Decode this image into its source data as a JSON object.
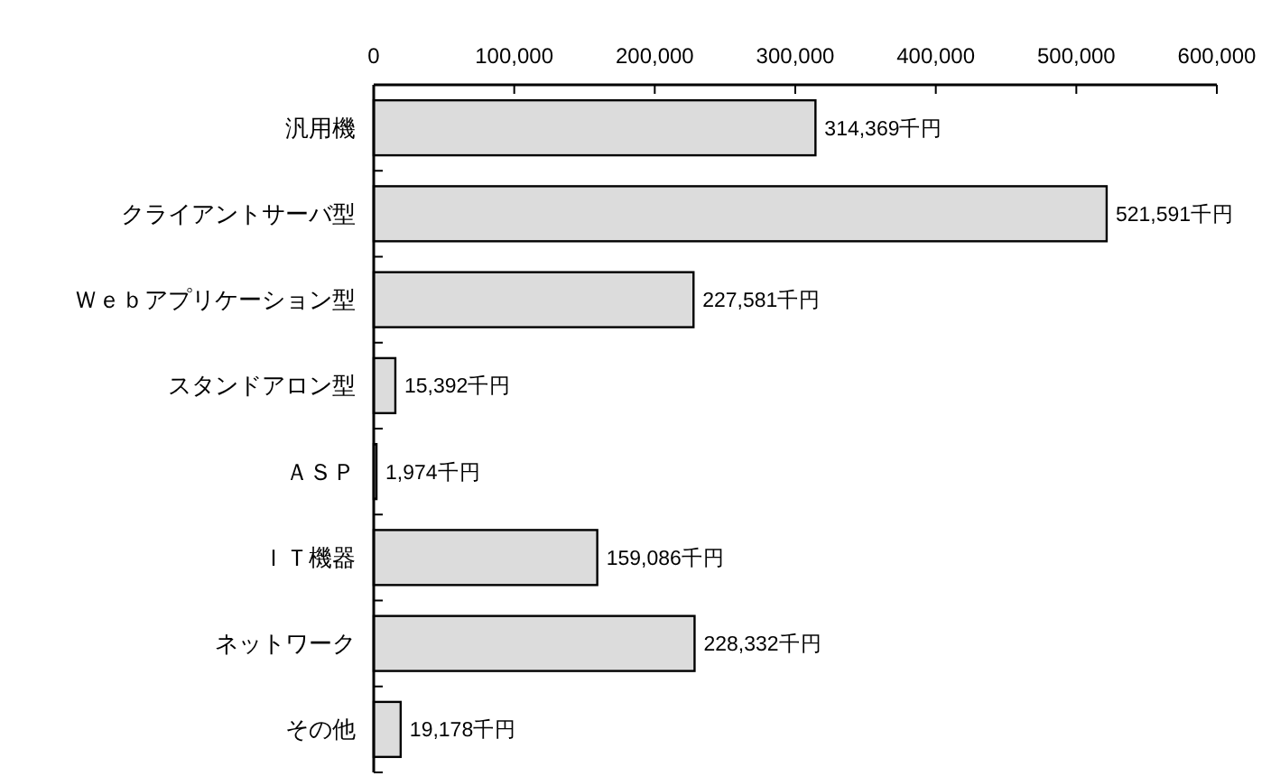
{
  "chart_data": {
    "type": "bar",
    "orientation": "horizontal",
    "categories": [
      "汎用機",
      "クライアントサーバ型",
      "Ｗｅｂアプリケーション型",
      "スタンドアロン型",
      "ＡＳＰ",
      "ＩＴ機器",
      "ネットワーク",
      "その他"
    ],
    "values": [
      314369,
      521591,
      227581,
      15392,
      1974,
      159086,
      228332,
      19178
    ],
    "value_labels": [
      "314,369千円",
      "521,591千円",
      "227,581千円",
      "15,392千円",
      "1,974千円",
      "159,086千円",
      "228,332千円",
      "19,178千円"
    ],
    "color": "#dcdcdc",
    "xlim": [
      0,
      600000
    ],
    "xticks": [
      {
        "value": 0,
        "label": "0"
      },
      {
        "value": 100000,
        "label": "100,000"
      },
      {
        "value": 200000,
        "label": "200,000"
      },
      {
        "value": 300000,
        "label": "300,000"
      },
      {
        "value": 400000,
        "label": "400,000"
      },
      {
        "value": 500000,
        "label": "500,000"
      },
      {
        "value": 600000,
        "label": "600,000"
      }
    ],
    "grid": false
  }
}
